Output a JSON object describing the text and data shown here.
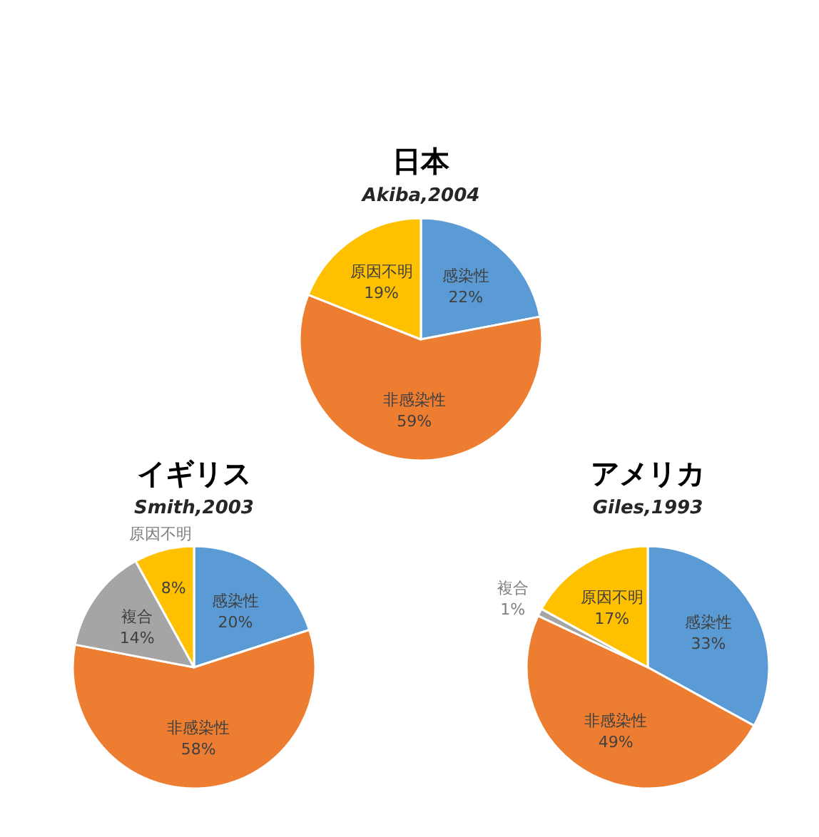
{
  "chart_data": [
    {
      "type": "pie",
      "title": "日本",
      "subtitle": "Akiba,2004",
      "categories": [
        "感染性",
        "非感染性",
        "原因不明"
      ],
      "values": [
        22,
        59,
        19
      ],
      "colors": [
        "#5b9bd5",
        "#ed7d31",
        "#ffc000"
      ],
      "value_labels": [
        "22%",
        "59%",
        "19%"
      ]
    },
    {
      "type": "pie",
      "title": "イギリス",
      "subtitle": "Smith,2003",
      "categories": [
        "感染性",
        "非感染性",
        "複合",
        "原因不明"
      ],
      "values": [
        20,
        58,
        14,
        8
      ],
      "colors": [
        "#5b9bd5",
        "#ed7d31",
        "#a5a5a5",
        "#ffc000"
      ],
      "value_labels": [
        "20%",
        "58%",
        "14%",
        "8%"
      ]
    },
    {
      "type": "pie",
      "title": "アメリカ",
      "subtitle": "Giles,1993",
      "categories": [
        "感染性",
        "非感染性",
        "複合",
        "原因不明"
      ],
      "values": [
        33,
        49,
        1,
        17
      ],
      "colors": [
        "#5b9bd5",
        "#ed7d31",
        "#a5a5a5",
        "#ffc000"
      ],
      "value_labels": [
        "33%",
        "49%",
        "1%",
        "17%"
      ]
    }
  ]
}
